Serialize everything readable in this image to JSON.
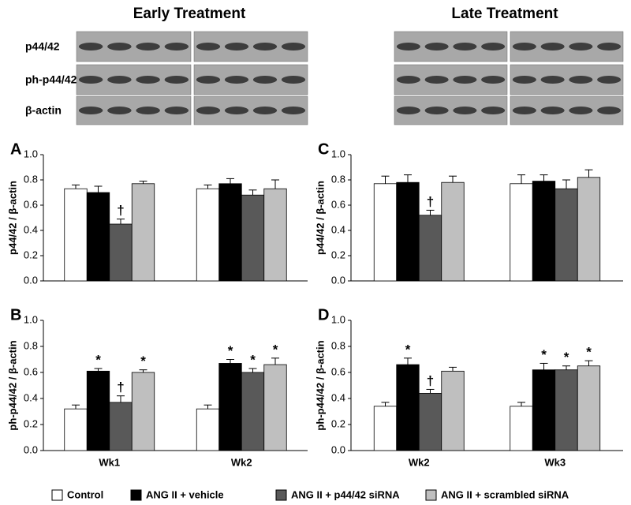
{
  "blots": {
    "groups": [
      "Early Treatment",
      "Late Treatment"
    ],
    "rows": [
      "p44/42",
      "ph-p44/42",
      "β-actin"
    ]
  },
  "legend": [
    {
      "name": "Control",
      "color": "#ffffff"
    },
    {
      "name": "ANG II + vehicle",
      "color": "#000000"
    },
    {
      "name": "ANG II + p44/42 siRNA",
      "color": "#595959"
    },
    {
      "name": "ANG II + scrambled siRNA",
      "color": "#bfbfbf"
    }
  ],
  "chart_data": [
    {
      "type": "bar",
      "panel": "A",
      "ylabel": "p44/42 / β-actin",
      "categories": [
        null,
        null
      ],
      "ylim": [
        0,
        1
      ],
      "yticks": [
        {
          "value": 0,
          "label": "0.0"
        },
        {
          "value": 0.2,
          "label": "0.2"
        },
        {
          "value": 0.4,
          "label": "0.4"
        },
        {
          "value": 0.6,
          "label": "0.6"
        },
        {
          "value": 0.8,
          "label": "0.8"
        },
        {
          "value": 1,
          "label": "1.0"
        }
      ],
      "series": [
        {
          "color": "#ffffff",
          "values": [
            0.73,
            0.73
          ],
          "errors": [
            0.03,
            0.03
          ],
          "annotations": [
            null,
            null
          ]
        },
        {
          "color": "#000000",
          "values": [
            0.7,
            0.77
          ],
          "errors": [
            0.05,
            0.04
          ],
          "annotations": [
            null,
            null
          ]
        },
        {
          "color": "#595959",
          "values": [
            0.45,
            0.68
          ],
          "errors": [
            0.04,
            0.04
          ],
          "annotations": [
            "†",
            null
          ]
        },
        {
          "color": "#bfbfbf",
          "values": [
            0.77,
            0.73
          ],
          "errors": [
            0.02,
            0.07
          ],
          "annotations": [
            null,
            null
          ]
        }
      ]
    },
    {
      "type": "bar",
      "panel": "B",
      "ylabel": "ph-p44/42 / β-actin",
      "categories": [
        "Wk1",
        "Wk2"
      ],
      "ylim": [
        0,
        1
      ],
      "yticks": [
        {
          "value": 0,
          "label": "0.0"
        },
        {
          "value": 0.2,
          "label": "0.2"
        },
        {
          "value": 0.4,
          "label": "0.4"
        },
        {
          "value": 0.6,
          "label": "0.6"
        },
        {
          "value": 0.8,
          "label": "0.8"
        },
        {
          "value": 1,
          "label": "1.0"
        }
      ],
      "series": [
        {
          "color": "#ffffff",
          "values": [
            0.32,
            0.32
          ],
          "errors": [
            0.03,
            0.03
          ],
          "annotations": [
            null,
            null
          ]
        },
        {
          "color": "#000000",
          "values": [
            0.61,
            0.67
          ],
          "errors": [
            0.02,
            0.03
          ],
          "annotations": [
            "*",
            "*"
          ]
        },
        {
          "color": "#595959",
          "values": [
            0.37,
            0.6
          ],
          "errors": [
            0.05,
            0.03
          ],
          "annotations": [
            "†",
            "*"
          ]
        },
        {
          "color": "#bfbfbf",
          "values": [
            0.6,
            0.66
          ],
          "errors": [
            0.02,
            0.05
          ],
          "annotations": [
            "*",
            "*"
          ]
        }
      ]
    },
    {
      "type": "bar",
      "panel": "C",
      "ylabel": "p44/42 / β-actin",
      "categories": [
        null,
        null
      ],
      "ylim": [
        0,
        1
      ],
      "yticks": [
        {
          "value": 0,
          "label": "0.0"
        },
        {
          "value": 0.2,
          "label": "0.2"
        },
        {
          "value": 0.4,
          "label": "0.4"
        },
        {
          "value": 0.6,
          "label": "0.6"
        },
        {
          "value": 0.8,
          "label": "0.8"
        },
        {
          "value": 1,
          "label": "1.0"
        }
      ],
      "series": [
        {
          "color": "#ffffff",
          "values": [
            0.77,
            0.77
          ],
          "errors": [
            0.06,
            0.07
          ],
          "annotations": [
            null,
            null
          ]
        },
        {
          "color": "#000000",
          "values": [
            0.78,
            0.79
          ],
          "errors": [
            0.06,
            0.05
          ],
          "annotations": [
            null,
            null
          ]
        },
        {
          "color": "#595959",
          "values": [
            0.52,
            0.73
          ],
          "errors": [
            0.04,
            0.07
          ],
          "annotations": [
            "†",
            null
          ]
        },
        {
          "color": "#bfbfbf",
          "values": [
            0.78,
            0.82
          ],
          "errors": [
            0.05,
            0.06
          ],
          "annotations": [
            null,
            null
          ]
        }
      ]
    },
    {
      "type": "bar",
      "panel": "D",
      "ylabel": "ph-p44/42 / β-actin",
      "categories": [
        "Wk2",
        "Wk3"
      ],
      "ylim": [
        0,
        1
      ],
      "yticks": [
        {
          "value": 0,
          "label": "0.0"
        },
        {
          "value": 0.2,
          "label": "0.2"
        },
        {
          "value": 0.4,
          "label": "0.4"
        },
        {
          "value": 0.6,
          "label": "0.6"
        },
        {
          "value": 0.8,
          "label": "0.8"
        },
        {
          "value": 1,
          "label": "1.0"
        }
      ],
      "series": [
        {
          "color": "#ffffff",
          "values": [
            0.34,
            0.34
          ],
          "errors": [
            0.03,
            0.03
          ],
          "annotations": [
            null,
            null
          ]
        },
        {
          "color": "#000000",
          "values": [
            0.66,
            0.62
          ],
          "errors": [
            0.05,
            0.05
          ],
          "annotations": [
            "*",
            "*"
          ]
        },
        {
          "color": "#595959",
          "values": [
            0.44,
            0.62
          ],
          "errors": [
            0.03,
            0.03
          ],
          "annotations": [
            "†",
            "*"
          ]
        },
        {
          "color": "#bfbfbf",
          "values": [
            0.61,
            0.65
          ],
          "errors": [
            0.03,
            0.04
          ],
          "annotations": [
            null,
            "*"
          ]
        }
      ]
    }
  ]
}
